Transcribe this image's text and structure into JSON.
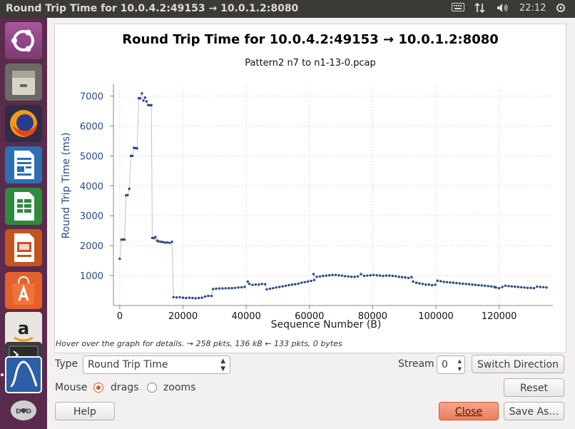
{
  "window": {
    "title": "Round Trip Time for 10.0.4.2:49153 → 10.0.1.2:8080"
  },
  "topbar": {
    "clock": "22:12"
  },
  "launcher": {
    "items": [
      "ubuntu-dash-icon",
      "files-icon",
      "firefox-icon",
      "writer-icon",
      "calc-icon",
      "impress-icon",
      "software-center-icon",
      "amazon-icon",
      "terminal-icon",
      "wireshark-icon",
      "dvd-icon"
    ]
  },
  "chart_data": {
    "type": "scatter",
    "title": "Round Trip Time for 10.0.4.2:49153 → 10.0.1.2:8080",
    "subtitle": "Pattern2 n7 to n1-13-0.pcap",
    "xlabel": "Sequence Number (B)",
    "ylabel": "Round Trip Time (ms)",
    "xlim": [
      -2000,
      137000
    ],
    "ylim": [
      0,
      7300
    ],
    "xticks": [
      0,
      20000,
      40000,
      60000,
      80000,
      100000,
      120000
    ],
    "yticks": [
      1000,
      2000,
      3000,
      4000,
      5000,
      6000,
      7000
    ],
    "grid": true,
    "series": [
      {
        "points": [
          [
            0,
            1560
          ],
          [
            500,
            2200
          ],
          [
            1000,
            2210
          ],
          [
            1500,
            2200
          ],
          [
            2000,
            3680
          ],
          [
            2500,
            3690
          ],
          [
            3000,
            3900
          ],
          [
            3500,
            5000
          ],
          [
            4000,
            5000
          ],
          [
            4500,
            5270
          ],
          [
            5000,
            5260
          ],
          [
            5500,
            5250
          ],
          [
            6000,
            6930
          ],
          [
            6500,
            6920
          ],
          [
            7000,
            7090
          ],
          [
            7500,
            6850
          ],
          [
            8000,
            6950
          ],
          [
            8500,
            6820
          ],
          [
            9000,
            6700
          ],
          [
            9500,
            6690
          ],
          [
            10000,
            6700
          ],
          [
            10300,
            2260
          ],
          [
            10800,
            2250
          ],
          [
            11300,
            2290
          ],
          [
            11800,
            2170
          ],
          [
            12300,
            2140
          ],
          [
            13000,
            2130
          ],
          [
            13700,
            2120
          ],
          [
            14400,
            2100
          ],
          [
            15100,
            2110
          ],
          [
            15800,
            2090
          ],
          [
            16500,
            2130
          ],
          [
            17000,
            280
          ],
          [
            18000,
            270
          ],
          [
            19000,
            280
          ],
          [
            20000,
            260
          ],
          [
            21000,
            250
          ],
          [
            22000,
            260
          ],
          [
            23000,
            250
          ],
          [
            24000,
            240
          ],
          [
            25000,
            250
          ],
          [
            26000,
            260
          ],
          [
            27000,
            300
          ],
          [
            28000,
            320
          ],
          [
            29000,
            320
          ],
          [
            29500,
            550
          ],
          [
            30500,
            560
          ],
          [
            31500,
            570
          ],
          [
            32500,
            570
          ],
          [
            33500,
            575
          ],
          [
            34500,
            580
          ],
          [
            35500,
            580
          ],
          [
            36500,
            590
          ],
          [
            37500,
            600
          ],
          [
            38500,
            610
          ],
          [
            39500,
            620
          ],
          [
            40500,
            800
          ],
          [
            41000,
            720
          ],
          [
            42000,
            690
          ],
          [
            43000,
            700
          ],
          [
            44000,
            700
          ],
          [
            45000,
            720
          ],
          [
            46000,
            710
          ],
          [
            46500,
            540
          ],
          [
            47500,
            560
          ],
          [
            48500,
            580
          ],
          [
            49500,
            600
          ],
          [
            50500,
            620
          ],
          [
            51500,
            640
          ],
          [
            52500,
            660
          ],
          [
            53500,
            680
          ],
          [
            54500,
            700
          ],
          [
            55500,
            710
          ],
          [
            56500,
            730
          ],
          [
            57500,
            760
          ],
          [
            58500,
            780
          ],
          [
            59500,
            800
          ],
          [
            60500,
            820
          ],
          [
            61500,
            850
          ],
          [
            61300,
            1050
          ],
          [
            62300,
            960
          ],
          [
            63300,
            970
          ],
          [
            64300,
            990
          ],
          [
            65300,
            1000
          ],
          [
            66300,
            1010
          ],
          [
            67300,
            1020
          ],
          [
            68300,
            1020
          ],
          [
            69300,
            1010
          ],
          [
            70300,
            1000
          ],
          [
            71300,
            980
          ],
          [
            72300,
            970
          ],
          [
            73300,
            960
          ],
          [
            74300,
            960
          ],
          [
            75300,
            970
          ],
          [
            76300,
            1050
          ],
          [
            77300,
            990
          ],
          [
            78300,
            1000
          ],
          [
            79300,
            1010
          ],
          [
            80300,
            1020
          ],
          [
            81300,
            1010
          ],
          [
            82300,
            1000
          ],
          [
            83300,
            990
          ],
          [
            84300,
            1000
          ],
          [
            85300,
            1000
          ],
          [
            86300,
            990
          ],
          [
            87300,
            980
          ],
          [
            88300,
            960
          ],
          [
            89300,
            950
          ],
          [
            90300,
            940
          ],
          [
            91300,
            920
          ],
          [
            92300,
            950
          ],
          [
            92800,
            800
          ],
          [
            93800,
            760
          ],
          [
            94800,
            740
          ],
          [
            95800,
            720
          ],
          [
            96800,
            700
          ],
          [
            97800,
            700
          ],
          [
            98800,
            680
          ],
          [
            99800,
            690
          ],
          [
            100500,
            830
          ],
          [
            101500,
            810
          ],
          [
            102500,
            790
          ],
          [
            103500,
            780
          ],
          [
            104500,
            770
          ],
          [
            105500,
            760
          ],
          [
            106500,
            750
          ],
          [
            107500,
            740
          ],
          [
            108500,
            730
          ],
          [
            109500,
            720
          ],
          [
            110500,
            710
          ],
          [
            111500,
            700
          ],
          [
            112500,
            690
          ],
          [
            113500,
            680
          ],
          [
            114500,
            670
          ],
          [
            115500,
            660
          ],
          [
            116500,
            650
          ],
          [
            117500,
            640
          ],
          [
            118500,
            620
          ],
          [
            119000,
            600
          ],
          [
            120000,
            580
          ],
          [
            121000,
            620
          ],
          [
            122000,
            660
          ],
          [
            123000,
            650
          ],
          [
            124000,
            640
          ],
          [
            125000,
            630
          ],
          [
            126000,
            620
          ],
          [
            127000,
            610
          ],
          [
            128000,
            600
          ],
          [
            129000,
            590
          ],
          [
            130000,
            590
          ],
          [
            131000,
            580
          ],
          [
            132000,
            630
          ],
          [
            133000,
            620
          ],
          [
            134000,
            610
          ],
          [
            135000,
            600
          ]
        ]
      }
    ]
  },
  "status": {
    "hint": "Hover over the graph for details. → 258 pkts, 136 kB ← 133 pkts, 0 bytes"
  },
  "controls": {
    "type_label": "Type",
    "type_value": "Round Trip Time",
    "stream_label": "Stream",
    "stream_value": "0",
    "switch_direction": "Switch Direction",
    "mouse_label": "Mouse",
    "drags_label": "drags",
    "zooms_label": "zooms",
    "reset": "Reset",
    "help": "Help",
    "close": "Close",
    "save_as": "Save As…"
  },
  "colors": {
    "point": "#2c4a86",
    "line": "#b9c3dc",
    "accent": "#e95420"
  }
}
